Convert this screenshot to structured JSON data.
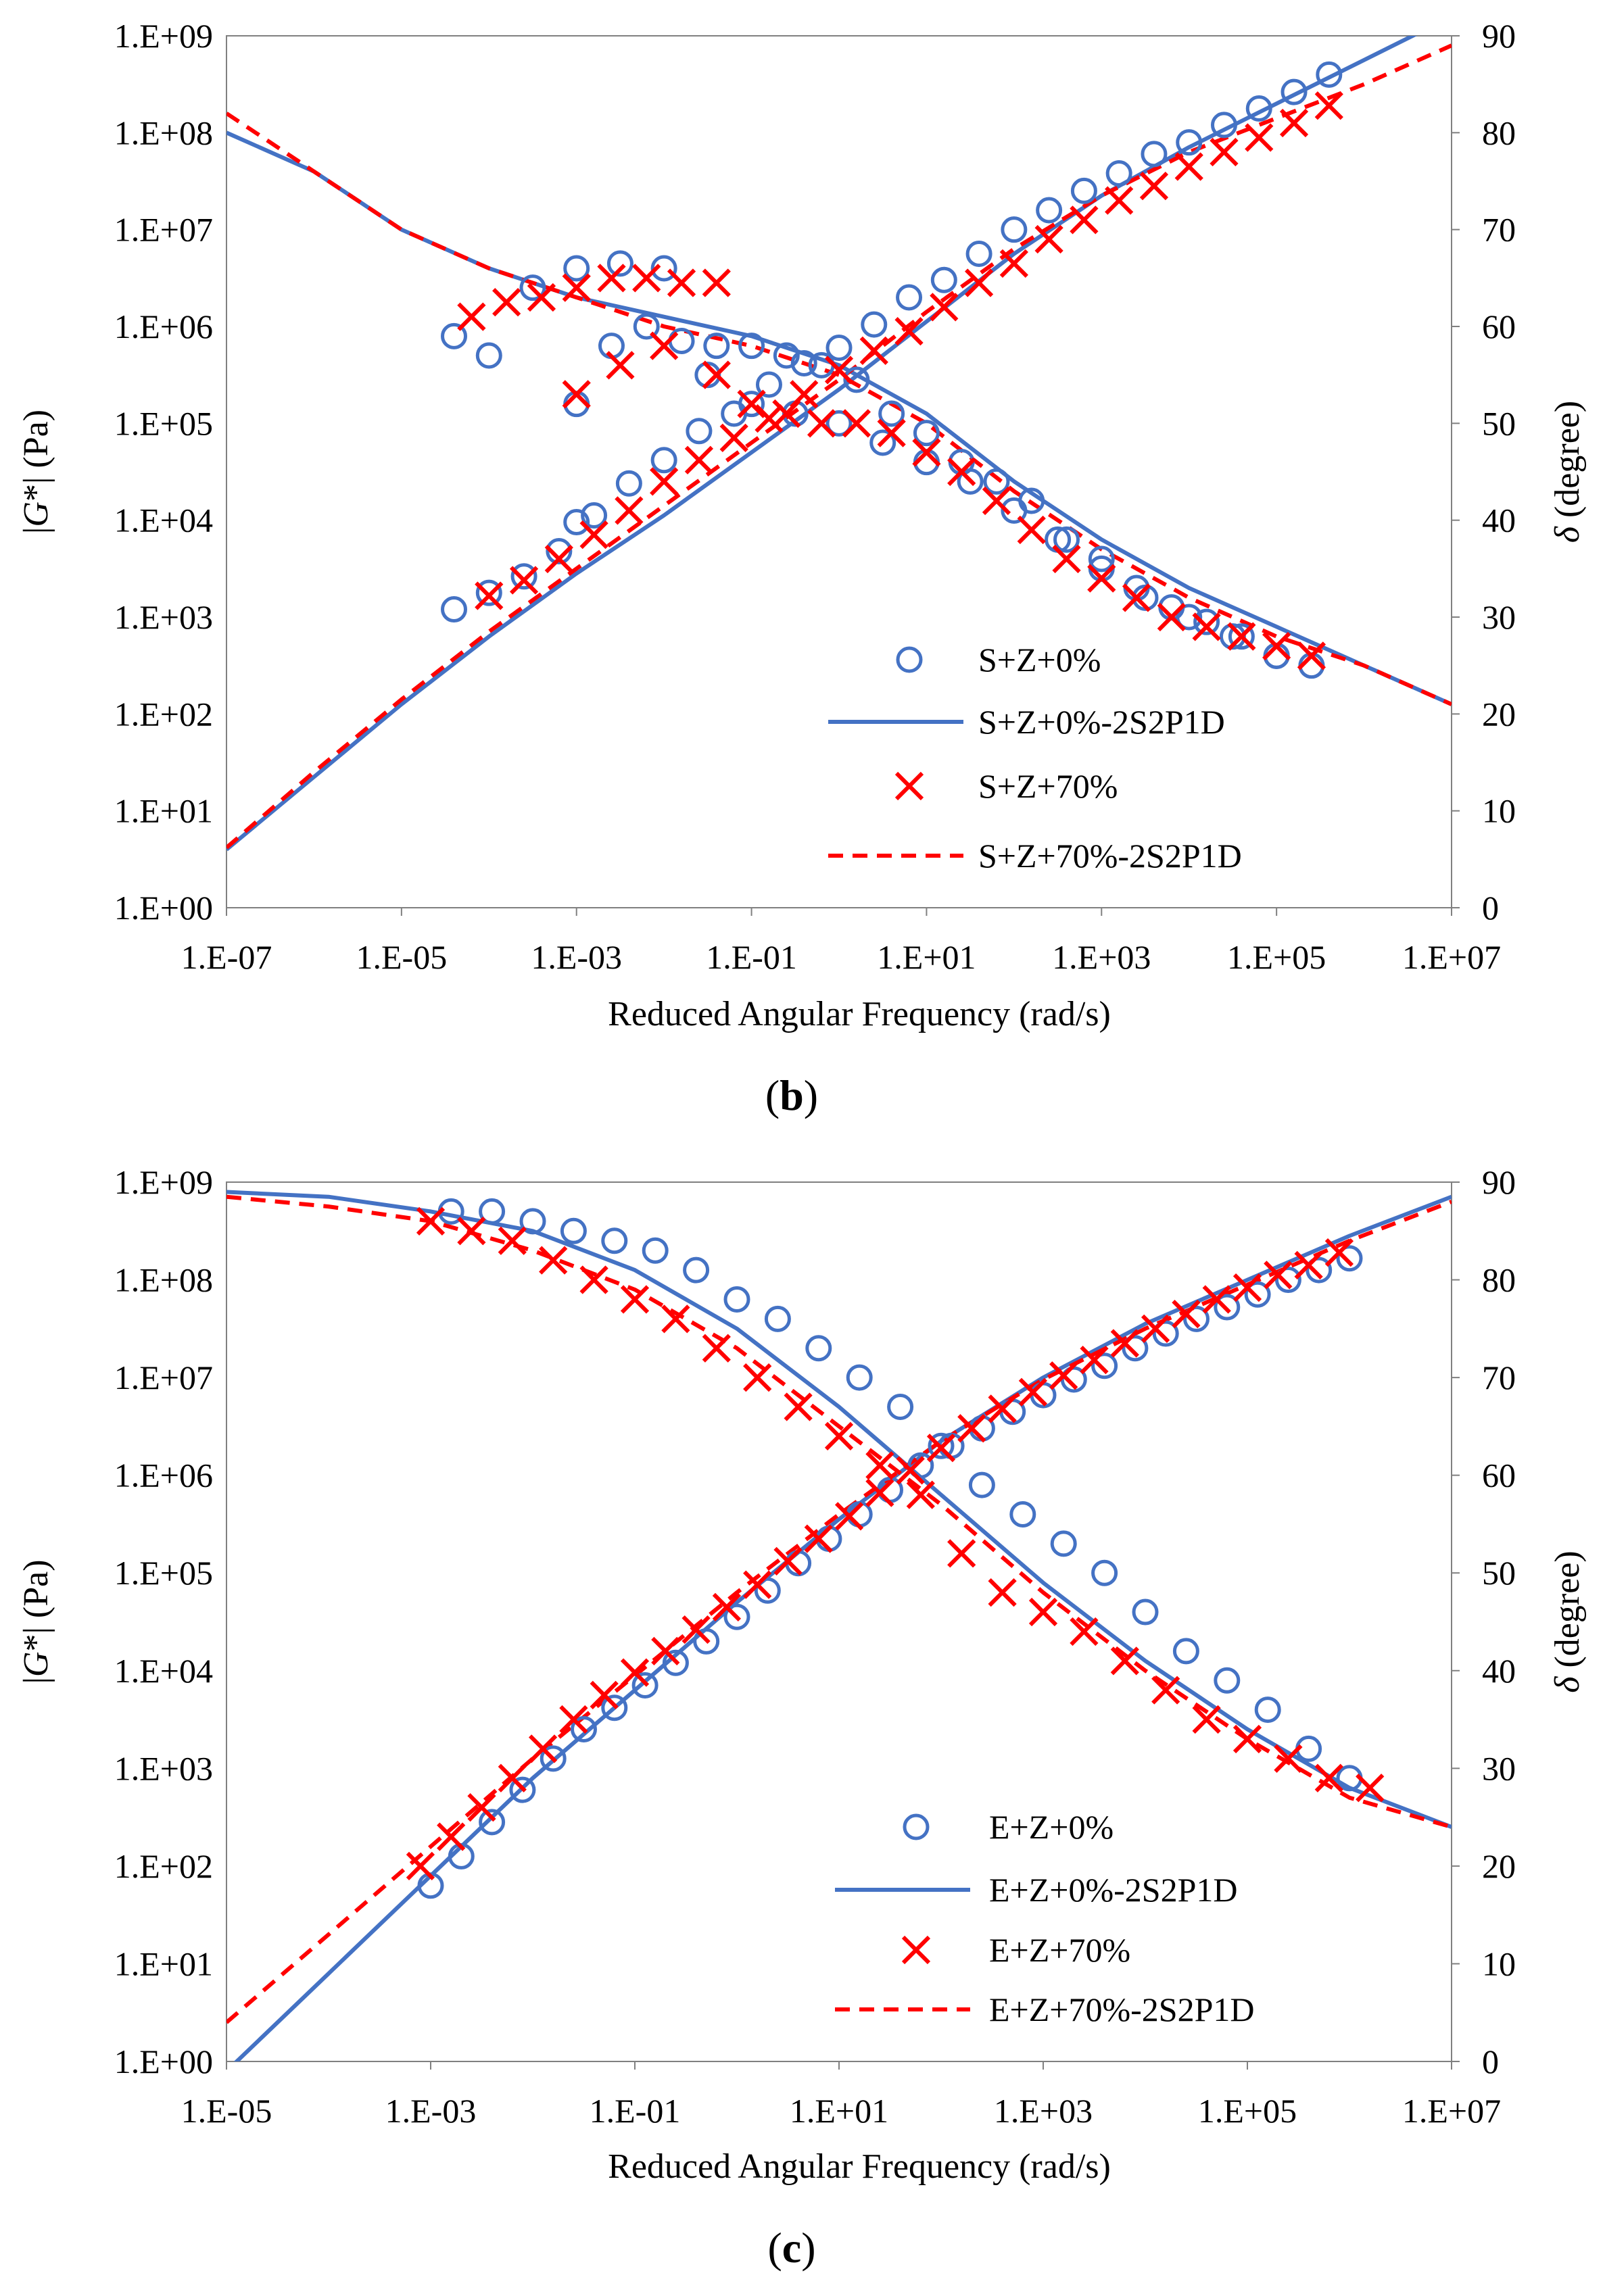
{
  "chart_data": [
    {
      "type": "scatter",
      "panel_label": "(b)",
      "panel_label_parts": [
        "(",
        "b",
        ")"
      ],
      "xlabel": "Reduced  Angular Frequency (rad/s)",
      "ylabel_left": "|G*| (Pa)",
      "ylabel_left_parts": [
        "|",
        "G",
        "*| (Pa)"
      ],
      "ylabel_right": "δ (degree)",
      "ylabel_right_parts": [
        "δ",
        " (degree)"
      ],
      "x_exp_range": [
        -7,
        7
      ],
      "y_left_exp_range": [
        0,
        9
      ],
      "y_right_range": [
        0,
        90
      ],
      "x_ticks": [
        "1.E-07",
        "1.E-05",
        "1.E-03",
        "1.E-01",
        "1.E+01",
        "1.E+03",
        "1.E+05",
        "1.E+07"
      ],
      "y_left_ticks": [
        "1.E+00",
        "1.E+01",
        "1.E+02",
        "1.E+03",
        "1.E+04",
        "1.E+05",
        "1.E+06",
        "1.E+07",
        "1.E+08",
        "1.E+09"
      ],
      "y_right_ticks": [
        "0",
        "10",
        "20",
        "30",
        "40",
        "50",
        "60",
        "70",
        "80",
        "90"
      ],
      "legend": [
        {
          "label": "S+Z+0%",
          "kind": "circle",
          "color": "#4472C4"
        },
        {
          "label": "S+Z+0%-2S2P1D",
          "kind": "line",
          "color": "#4472C4"
        },
        {
          "label": "S+Z+70%",
          "kind": "cross",
          "color": "#FF0000"
        },
        {
          "label": "S+Z+70%-2S2P1D",
          "kind": "dash",
          "color": "#FF0000"
        }
      ],
      "series": [
        {
          "name": "S+Z+0% |G*|",
          "axis": "left",
          "kind": "circle",
          "color": "#4472C4",
          "log_x": [
            -4.4,
            -4,
            -3.6,
            -3.2,
            -3,
            -2.8,
            -2.4,
            -2,
            -1.6,
            -1.2,
            -0.8,
            -0.4,
            0,
            0.4,
            0.8,
            1.2,
            1.6,
            2,
            2.4,
            2.8,
            3.2,
            3.6,
            4,
            4.4,
            4.8,
            5.2,
            5.6
          ],
          "log_y": [
            3.08,
            3.25,
            3.42,
            3.68,
            3.98,
            4.05,
            4.38,
            4.62,
            4.92,
            5.1,
            5.4,
            5.62,
            5.78,
            6.02,
            6.3,
            6.48,
            6.75,
            7.0,
            7.2,
            7.4,
            7.58,
            7.78,
            7.9,
            8.08,
            8.25,
            8.42,
            8.6
          ]
        },
        {
          "name": "S+Z+0% δ",
          "axis": "right",
          "kind": "circle",
          "color": "#4472C4",
          "log_x": [
            -4.4,
            -3,
            -2.6,
            -2.2,
            -1.8,
            -1.4,
            -1,
            -0.6,
            -0.2,
            0.2,
            0.6,
            1,
            1.4,
            1.8,
            2.2,
            2.6,
            3,
            3.4,
            3.8,
            4.2,
            4.6,
            5,
            5.4
          ],
          "y": [
            59,
            52,
            58,
            60,
            58.5,
            58,
            58,
            57,
            56,
            54.5,
            51,
            49,
            46,
            44,
            42,
            38,
            36,
            33,
            31,
            29.5,
            28,
            26,
            25
          ]
        },
        {
          "name": "S+Z+0% δ lower",
          "axis": "right",
          "kind": "circle",
          "color": "#4472C4",
          "log_x": [
            -4,
            -3.5,
            -3,
            -2.5,
            -2,
            -1.5,
            -1,
            -0.5,
            0,
            0.5,
            1,
            1.5,
            2,
            2.5,
            3,
            3.5,
            4,
            4.5,
            5
          ],
          "y": [
            57,
            64,
            66,
            66.5,
            66,
            55,
            52,
            51,
            50,
            48,
            46,
            44,
            41,
            38,
            35,
            32,
            30,
            28,
            26
          ]
        },
        {
          "name": "S+Z+70% |G*|",
          "axis": "left",
          "kind": "cross",
          "color": "#FF0000",
          "log_x": [
            -4,
            -3.6,
            -3.2,
            -2.8,
            -2.4,
            -2,
            -1.6,
            -1.2,
            -0.8,
            -0.4,
            0,
            0.4,
            0.8,
            1.2,
            1.6,
            2,
            2.4,
            2.8,
            3.2,
            3.6,
            4,
            4.4,
            4.8,
            5.2,
            5.6
          ],
          "log_y": [
            3.22,
            3.38,
            3.6,
            3.85,
            4.1,
            4.4,
            4.62,
            4.85,
            5.05,
            5.3,
            5.55,
            5.75,
            5.95,
            6.2,
            6.45,
            6.65,
            6.9,
            7.1,
            7.3,
            7.45,
            7.65,
            7.8,
            7.95,
            8.1,
            8.28
          ]
        },
        {
          "name": "S+Z+70% δ",
          "axis": "right",
          "kind": "cross",
          "color": "#FF0000",
          "log_x": [
            -4.2,
            -3.8,
            -3.4,
            -3,
            -2.6,
            -2.2,
            -1.8,
            -1.4,
            -3,
            -2.5,
            -2,
            -1.4,
            -1,
            -0.6,
            -0.2,
            0.2,
            0.6,
            1,
            1.4,
            1.8,
            2.2,
            2.6,
            3,
            3.4,
            3.8,
            4.2,
            4.6,
            5,
            5.4
          ],
          "y": [
            61,
            62.5,
            63,
            64,
            65,
            65,
            64.5,
            64.5,
            53,
            56,
            58,
            55,
            52,
            51,
            50,
            50,
            49,
            47,
            45,
            42,
            39,
            36,
            34,
            32,
            30,
            29,
            28,
            27,
            26
          ]
        }
      ],
      "curves": [
        {
          "name": "S+Z+0%-2S2P1D |G*|",
          "axis": "left",
          "kind": "line",
          "color": "#4472C4",
          "log_x": [
            -7,
            -6,
            -5,
            -4,
            -3,
            -2,
            -1,
            0,
            1,
            2,
            3,
            4,
            5,
            6,
            7
          ],
          "log_y": [
            0.6,
            1.35,
            2.1,
            2.8,
            3.45,
            4.05,
            4.7,
            5.35,
            6.05,
            6.75,
            7.35,
            7.85,
            8.3,
            8.75,
            9.2
          ]
        },
        {
          "name": "S+Z+0%-2S2P1D δ",
          "axis": "right",
          "kind": "line",
          "color": "#4472C4",
          "log_x": [
            -7,
            -6,
            -5,
            -4,
            -3,
            -2,
            -1,
            0,
            1,
            2,
            3,
            4,
            5,
            6,
            7
          ],
          "y": [
            80,
            76,
            70,
            66,
            63,
            61,
            59,
            56,
            51,
            44,
            38,
            33,
            29,
            25,
            21
          ]
        },
        {
          "name": "S+Z+70%-2S2P1D |G*|",
          "axis": "left",
          "kind": "dash",
          "color": "#FF0000",
          "log_x": [
            -7,
            -6,
            -5,
            -4,
            -3,
            -2,
            -1,
            0,
            1,
            2,
            3,
            4,
            5,
            6,
            7
          ],
          "log_y": [
            0.62,
            1.4,
            2.15,
            2.85,
            3.5,
            4.15,
            4.8,
            5.45,
            6.15,
            6.8,
            7.35,
            7.8,
            8.15,
            8.5,
            8.9
          ]
        },
        {
          "name": "S+Z+70%-2S2P1D δ",
          "axis": "right",
          "kind": "dash",
          "color": "#FF0000",
          "log_x": [
            -7,
            -6,
            -5,
            -4,
            -3,
            -2,
            -1,
            0,
            1,
            2,
            3,
            4,
            5,
            6,
            7
          ],
          "y": [
            82,
            76,
            70,
            66,
            63,
            60,
            58,
            55,
            50,
            43,
            37,
            32,
            28,
            25,
            21
          ]
        }
      ]
    },
    {
      "type": "scatter",
      "panel_label": "(c)",
      "panel_label_parts": [
        "(",
        "c",
        ")"
      ],
      "xlabel": "Reduced  Angular Frequency (rad/s)",
      "ylabel_left": "|G*| (Pa)",
      "ylabel_left_parts": [
        "|",
        "G",
        "*| (Pa)"
      ],
      "ylabel_right": "δ (degree)",
      "ylabel_right_parts": [
        "δ",
        " (degree)"
      ],
      "x_exp_range": [
        -5,
        7
      ],
      "y_left_exp_range": [
        0,
        9
      ],
      "y_right_range": [
        0,
        90
      ],
      "x_ticks": [
        "1.E-05",
        "1.E-03",
        "1.E-01",
        "1.E+01",
        "1.E+03",
        "1.E+05",
        "1.E+07"
      ],
      "y_left_ticks": [
        "1.E+00",
        "1.E+01",
        "1.E+02",
        "1.E+03",
        "1.E+04",
        "1.E+05",
        "1.E+06",
        "1.E+07",
        "1.E+08",
        "1.E+09"
      ],
      "y_right_ticks": [
        "0",
        "10",
        "20",
        "30",
        "40",
        "50",
        "60",
        "70",
        "80",
        "90"
      ],
      "legend": [
        {
          "label": "E+Z+0%",
          "kind": "circle",
          "color": "#4472C4"
        },
        {
          "label": "E+Z+0%-2S2P1D",
          "kind": "line",
          "color": "#4472C4"
        },
        {
          "label": "E+Z+70%",
          "kind": "cross",
          "color": "#FF0000"
        },
        {
          "label": "E+Z+70%-2S2P1D",
          "kind": "dash",
          "color": "#FF0000"
        }
      ],
      "series": [
        {
          "name": "E+Z+0% |G*|",
          "axis": "left",
          "kind": "circle",
          "color": "#4472C4",
          "log_x": [
            -3,
            -2.7,
            -2.4,
            -2.1,
            -1.8,
            -1.5,
            -1.2,
            -0.9,
            -0.6,
            -0.3,
            0,
            0.3,
            0.6,
            0.9,
            1.2,
            1.5,
            1.8,
            2.1,
            2.4,
            2.7,
            3,
            3.3,
            3.6,
            3.9,
            4.2,
            4.5,
            4.8,
            5.1,
            5.4,
            5.7,
            6
          ],
          "log_y": [
            1.8,
            2.1,
            2.45,
            2.78,
            3.1,
            3.4,
            3.62,
            3.85,
            4.08,
            4.3,
            4.55,
            4.82,
            5.1,
            5.35,
            5.6,
            5.85,
            6.1,
            6.3,
            6.48,
            6.65,
            6.82,
            6.98,
            7.12,
            7.3,
            7.45,
            7.6,
            7.72,
            7.85,
            8.0,
            8.1,
            8.22
          ]
        },
        {
          "name": "E+Z+0% δ",
          "axis": "right",
          "kind": "circle",
          "color": "#4472C4",
          "log_x": [
            -2.8,
            -2.4,
            -2,
            -1.6,
            -1.2,
            -0.8,
            -0.4,
            0,
            0.4,
            0.8,
            1.2,
            1.6,
            2,
            2.4,
            2.8,
            3.2,
            3.6,
            4,
            4.4,
            4.8,
            5.2,
            5.6,
            6
          ],
          "y": [
            87,
            87,
            86,
            85,
            84,
            83,
            81,
            78,
            76,
            73,
            70,
            67,
            63,
            59,
            56,
            53,
            50,
            46,
            42,
            39,
            36,
            32,
            29
          ]
        },
        {
          "name": "E+Z+70% |G*|",
          "axis": "left",
          "kind": "cross",
          "color": "#FF0000",
          "log_x": [
            -3.1,
            -2.8,
            -2.5,
            -2.2,
            -1.9,
            -1.6,
            -1.3,
            -1,
            -0.7,
            -0.4,
            -0.1,
            0.2,
            0.5,
            0.8,
            1.1,
            1.4,
            1.7,
            2,
            2.3,
            2.6,
            2.9,
            3.2,
            3.5,
            3.8,
            4.1,
            4.4,
            4.7,
            5,
            5.3,
            5.6,
            5.9
          ],
          "log_y": [
            2.0,
            2.3,
            2.6,
            2.9,
            3.2,
            3.5,
            3.75,
            3.98,
            4.2,
            4.42,
            4.65,
            4.88,
            5.12,
            5.35,
            5.58,
            5.82,
            6.05,
            6.28,
            6.48,
            6.68,
            6.85,
            7.02,
            7.18,
            7.35,
            7.5,
            7.65,
            7.8,
            7.92,
            8.05,
            8.15,
            8.28
          ]
        },
        {
          "name": "E+Z+70% δ",
          "axis": "right",
          "kind": "cross",
          "color": "#FF0000",
          "log_x": [
            -3,
            -2.6,
            -2.2,
            -1.8,
            -1.4,
            -1,
            -0.6,
            -0.2,
            0.2,
            0.6,
            1,
            1.4,
            1.8,
            2.2,
            2.6,
            3,
            3.4,
            3.8,
            4.2,
            4.6,
            5,
            5.4,
            5.8,
            6.2
          ],
          "y": [
            86,
            85,
            84,
            82,
            80,
            78,
            76,
            73,
            70,
            67,
            64,
            61,
            58,
            52,
            48,
            46,
            44,
            41,
            38,
            35,
            33,
            31,
            29,
            28
          ]
        }
      ],
      "curves": [
        {
          "name": "E+Z+0%-2S2P1D |G*|",
          "axis": "left",
          "kind": "line",
          "color": "#4472C4",
          "log_x": [
            -5,
            -4,
            -3,
            -2,
            -1,
            0,
            1,
            2,
            3,
            4,
            5,
            6,
            7
          ],
          "log_y": [
            -0.1,
            0.9,
            1.9,
            2.9,
            3.8,
            4.7,
            5.55,
            6.35,
            7.0,
            7.55,
            8.0,
            8.45,
            8.85
          ]
        },
        {
          "name": "E+Z+0%-2S2P1D δ",
          "axis": "right",
          "kind": "line",
          "color": "#4472C4",
          "log_x": [
            -5,
            -4,
            -3,
            -2,
            -1,
            0,
            1,
            2,
            3,
            4,
            5,
            6,
            7
          ],
          "y": [
            89,
            88.5,
            87,
            85,
            81,
            75,
            67,
            58,
            49,
            41,
            34,
            28,
            24
          ]
        },
        {
          "name": "E+Z+70%-2S2P1D |G*|",
          "axis": "left",
          "kind": "dash",
          "color": "#FF0000",
          "log_x": [
            -5,
            -4,
            -3,
            -2,
            -1,
            0,
            1,
            2,
            3,
            4,
            5,
            6,
            7
          ],
          "log_y": [
            0.4,
            1.3,
            2.2,
            3.1,
            3.95,
            4.8,
            5.6,
            6.35,
            6.98,
            7.5,
            7.95,
            8.4,
            8.8
          ]
        },
        {
          "name": "E+Z+70%-2S2P1D δ",
          "axis": "right",
          "kind": "dash",
          "color": "#FF0000",
          "log_x": [
            -5,
            -4,
            -3,
            -2,
            -1,
            0,
            1,
            2,
            3,
            4,
            5,
            6,
            7
          ],
          "y": [
            88.5,
            87.5,
            86,
            83,
            79,
            73,
            65,
            57,
            48,
            40,
            33,
            27,
            24
          ]
        }
      ]
    }
  ]
}
